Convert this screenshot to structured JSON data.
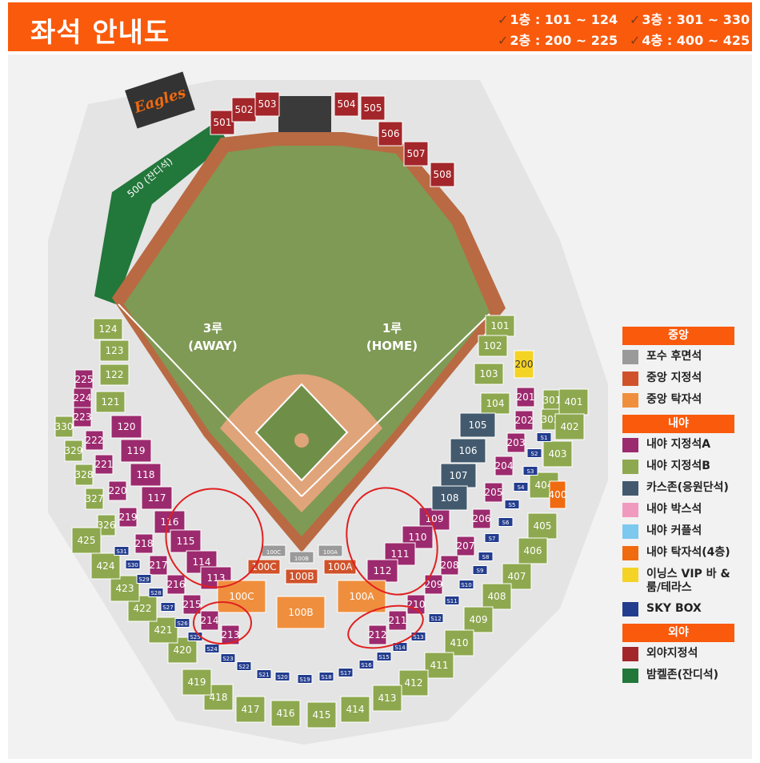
{
  "header": {
    "title": "좌석 안내도",
    "ranges": [
      "1층 : 101 ~ 124",
      "3층 : 301 ~ 330",
      "2층 : 200 ~ 225",
      "4층 : 400 ~ 425"
    ],
    "check_icon": "checkmark-icon"
  },
  "field": {
    "third_base": "3루",
    "away": "(AWAY)",
    "first_base": "1루",
    "home": "(HOME)"
  },
  "logo": "Eagles",
  "colors": {
    "accent": "#fa5a0c",
    "catcher": "#9a9a9a",
    "center_reserved": "#d0522a",
    "center_table": "#ef8f3e",
    "infield_a": "#9c2a6e",
    "infield_b": "#8ea84f",
    "cass_zone": "#435a6e",
    "box": "#f09ac0",
    "couple": "#7cc8ee",
    "table_4f": "#f06a10",
    "vip": "#f5d324",
    "skybox": "#233d8e",
    "outfield": "#a3262a",
    "bullpen": "#22773a",
    "field": "#7f9a55",
    "dirt": "#b96a43",
    "annotation": "#e02020"
  },
  "sections": {
    "outfield": [
      "501",
      "502",
      "503",
      "504",
      "505",
      "506",
      "507",
      "508"
    ],
    "bullpen": "500 (잔디석)",
    "infield_b": [
      "124",
      "123",
      "122",
      "121",
      "101",
      "102",
      "103",
      "104"
    ],
    "infield_a_1f": [
      "120",
      "119",
      "118",
      "117",
      "116",
      "115",
      "114",
      "113",
      "109",
      "110",
      "111",
      "112"
    ],
    "cass_zone": [
      "105",
      "106",
      "107",
      "108"
    ],
    "catcher": [
      "100C",
      "100B",
      "100A"
    ],
    "center_reserved": [
      "100C",
      "100B",
      "100A"
    ],
    "center_table": [
      "100C",
      "100B",
      "100A"
    ],
    "infield_a_2f": [
      "225",
      "224",
      "223",
      "222",
      "221",
      "220",
      "219",
      "218",
      "217",
      "216",
      "215",
      "214",
      "213",
      "201",
      "202",
      "203",
      "204",
      "205",
      "206",
      "207",
      "208",
      "209",
      "210",
      "211",
      "212"
    ],
    "vip": [
      "200"
    ],
    "third_floor": [
      "330",
      "329",
      "328",
      "327",
      "326",
      "301",
      "302"
    ],
    "fourth_floor": [
      "401",
      "402",
      "403",
      "404",
      "405",
      "406",
      "407",
      "408",
      "409",
      "410",
      "411",
      "412",
      "413",
      "414",
      "415",
      "416",
      "417",
      "418",
      "419",
      "420",
      "421",
      "422",
      "423",
      "424",
      "425"
    ],
    "table_4f": [
      "400"
    ],
    "skybox": [
      "S31",
      "S30",
      "S29",
      "S28",
      "S27",
      "S26",
      "S25",
      "S24",
      "S23",
      "S22",
      "S21",
      "S20",
      "S19",
      "S18",
      "S17",
      "S16",
      "S15",
      "S14",
      "S13",
      "S12",
      "S11",
      "S10",
      "S9",
      "S8",
      "S7",
      "S6",
      "S5",
      "S4",
      "S3",
      "S2",
      "S1"
    ]
  },
  "legend": [
    {
      "heading": "중앙",
      "items": [
        {
          "label": "포수 후면석",
          "color": "#9a9a9a"
        },
        {
          "label": "중앙 지정석",
          "color": "#d0522a"
        },
        {
          "label": "중앙 탁자석",
          "color": "#ef8f3e"
        }
      ]
    },
    {
      "heading": "내야",
      "items": [
        {
          "label": "내야 지정석A",
          "color": "#9c2a6e"
        },
        {
          "label": "내야 지정석B",
          "color": "#8ea84f"
        },
        {
          "label": "카스존(응원단석)",
          "color": "#435a6e"
        },
        {
          "label": "내야 박스석",
          "color": "#f09ac0"
        },
        {
          "label": "내야 커플석",
          "color": "#7cc8ee"
        },
        {
          "label": "내야 탁자석(4층)",
          "color": "#f06a10"
        },
        {
          "label": "이닝스 VIP 바 & 룸/테라스",
          "color": "#f5d324"
        },
        {
          "label": "SKY BOX",
          "color": "#233d8e"
        }
      ]
    },
    {
      "heading": "외야",
      "items": [
        {
          "label": "외야지정석",
          "color": "#a3262a"
        },
        {
          "label": "밤켈존(잔디석)",
          "color": "#22773a"
        }
      ]
    }
  ]
}
